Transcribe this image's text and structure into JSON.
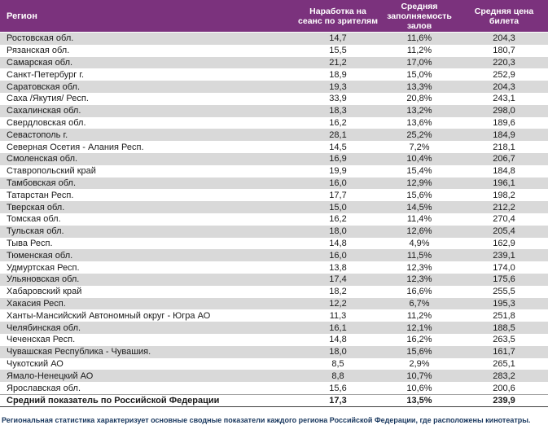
{
  "colors": {
    "header_bg": "#7b327d",
    "row_alt": "#d9d9d9",
    "footer_text": "#17365d"
  },
  "table": {
    "columns": {
      "region": "Регион",
      "per_session": "Наработка на сеанс по зрителям",
      "occupancy": "Средняя заполняемость залов",
      "price": "Средняя цена билета"
    },
    "rows": [
      {
        "region": "Ростовская обл.",
        "per_session": "14,7",
        "occupancy": "11,6%",
        "price": "204,3"
      },
      {
        "region": "Рязанская обл.",
        "per_session": "15,5",
        "occupancy": "11,2%",
        "price": "180,7"
      },
      {
        "region": "Самарская обл.",
        "per_session": "21,2",
        "occupancy": "17,0%",
        "price": "220,3"
      },
      {
        "region": "Санкт-Петербург г.",
        "per_session": "18,9",
        "occupancy": "15,0%",
        "price": "252,9"
      },
      {
        "region": "Саратовская обл.",
        "per_session": "19,3",
        "occupancy": "13,3%",
        "price": "204,3"
      },
      {
        "region": "Саха /Якутия/ Респ.",
        "per_session": "33,9",
        "occupancy": "20,8%",
        "price": "243,1"
      },
      {
        "region": "Сахалинская обл.",
        "per_session": "18,3",
        "occupancy": "13,2%",
        "price": "298,0"
      },
      {
        "region": "Свердловская обл.",
        "per_session": "16,2",
        "occupancy": "13,6%",
        "price": "189,6"
      },
      {
        "region": "Севастополь г.",
        "per_session": "28,1",
        "occupancy": "25,2%",
        "price": "184,9"
      },
      {
        "region": "Северная Осетия - Алания Респ.",
        "per_session": "14,5",
        "occupancy": "7,2%",
        "price": "218,1"
      },
      {
        "region": "Смоленская обл.",
        "per_session": "16,9",
        "occupancy": "10,4%",
        "price": "206,7"
      },
      {
        "region": "Ставропольский край",
        "per_session": "19,9",
        "occupancy": "15,4%",
        "price": "184,8"
      },
      {
        "region": "Тамбовская обл.",
        "per_session": "16,0",
        "occupancy": "12,9%",
        "price": "196,1"
      },
      {
        "region": "Татарстан Респ.",
        "per_session": "17,7",
        "occupancy": "15,6%",
        "price": "198,2"
      },
      {
        "region": "Тверская обл.",
        "per_session": "15,0",
        "occupancy": "14,5%",
        "price": "212,2"
      },
      {
        "region": "Томская обл.",
        "per_session": "16,2",
        "occupancy": "11,4%",
        "price": "270,4"
      },
      {
        "region": "Тульская обл.",
        "per_session": "18,0",
        "occupancy": "12,6%",
        "price": "205,4"
      },
      {
        "region": "Тыва Респ.",
        "per_session": "14,8",
        "occupancy": "4,9%",
        "price": "162,9"
      },
      {
        "region": "Тюменская обл.",
        "per_session": "16,0",
        "occupancy": "11,5%",
        "price": "239,1"
      },
      {
        "region": "Удмуртская Респ.",
        "per_session": "13,8",
        "occupancy": "12,3%",
        "price": "174,0"
      },
      {
        "region": "Ульяновская обл.",
        "per_session": "17,4",
        "occupancy": "12,3%",
        "price": "175,6"
      },
      {
        "region": "Хабаровский край",
        "per_session": "18,2",
        "occupancy": "16,6%",
        "price": "255,5"
      },
      {
        "region": "Хакасия Респ.",
        "per_session": "12,2",
        "occupancy": "6,7%",
        "price": "195,3"
      },
      {
        "region": "Ханты-Мансийский Автономный округ - Югра АО",
        "per_session": "11,3",
        "occupancy": "11,2%",
        "price": "251,8"
      },
      {
        "region": "Челябинская обл.",
        "per_session": "16,1",
        "occupancy": "12,1%",
        "price": "188,5"
      },
      {
        "region": "Чеченская Респ.",
        "per_session": "14,8",
        "occupancy": "16,2%",
        "price": "263,5"
      },
      {
        "region": "Чувашская Республика - Чувашия.",
        "per_session": "18,0",
        "occupancy": "15,6%",
        "price": "161,7"
      },
      {
        "region": "Чукотский АО",
        "per_session": "8,5",
        "occupancy": "2,9%",
        "price": "265,1"
      },
      {
        "region": "Ямало-Ненецкий АО",
        "per_session": "8,8",
        "occupancy": "10,7%",
        "price": "283,2"
      },
      {
        "region": "Ярославская обл.",
        "per_session": "15,6",
        "occupancy": "10,6%",
        "price": "200,6"
      }
    ],
    "summary": {
      "region": "Средний показатель по Российской Федерации",
      "per_session": "17,3",
      "occupancy": "13,5%",
      "price": "239,9"
    }
  },
  "footer": {
    "note": "Региональная статистика характеризует основные сводные показатели каждого региона Российской Федерации, где расположены кинотеатры."
  }
}
